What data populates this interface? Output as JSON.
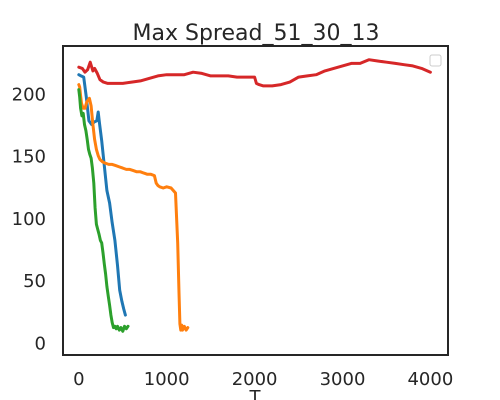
{
  "chart_data": {
    "type": "line",
    "title": "Max Spread_51_30_13",
    "xlabel": "T",
    "ylabel": "",
    "xlim": [
      -180,
      4200
    ],
    "ylim": [
      -10,
      238
    ],
    "xticks": [
      0,
      1000,
      2000,
      3000,
      4000
    ],
    "yticks": [
      0,
      50,
      100,
      150,
      200
    ],
    "grid": false,
    "legend": {
      "placement": "top-right",
      "entries": []
    },
    "series": [
      {
        "color": "#1f77b4",
        "x": [
          0,
          25,
          55,
          85,
          115,
          145,
          175,
          205,
          220,
          235,
          260,
          290,
          320,
          350,
          380,
          410,
          440,
          465,
          490,
          510,
          530
        ],
        "y": [
          215,
          214,
          213,
          197,
          178,
          175,
          177,
          178,
          185,
          176,
          162,
          142,
          122,
          112,
          96,
          82,
          62,
          42,
          33,
          27,
          22
        ]
      },
      {
        "color": "#ff7f0e",
        "x": [
          0,
          10,
          20,
          30,
          50,
          70,
          90,
          120,
          140,
          160,
          180,
          200,
          220,
          240,
          270,
          300,
          340,
          380,
          420,
          460,
          500,
          540,
          580,
          620,
          660,
          700,
          740,
          780,
          820,
          860,
          880,
          900,
          920,
          960,
          1000,
          1050,
          1100,
          1125,
          1140,
          1150,
          1160,
          1170,
          1180,
          1200,
          1220,
          1240
        ],
        "y": [
          207,
          205,
          198,
          192,
          188,
          188,
          193,
          196,
          190,
          175,
          163,
          155,
          150,
          147,
          145,
          144,
          143,
          143,
          142,
          141,
          140,
          139,
          139,
          138,
          137,
          137,
          136,
          135,
          135,
          134,
          128,
          126,
          125,
          124,
          125,
          124,
          120,
          80,
          40,
          15,
          10,
          14,
          10,
          13,
          10,
          12
        ]
      },
      {
        "color": "#2ca02c",
        "x": [
          0,
          10,
          20,
          35,
          50,
          65,
          80,
          95,
          110,
          125,
          140,
          155,
          170,
          185,
          200,
          215,
          230,
          245,
          260,
          275,
          290,
          305,
          320,
          335,
          350,
          365,
          380,
          395,
          410,
          425,
          440,
          460,
          480,
          500,
          520,
          540,
          560
        ],
        "y": [
          203,
          197,
          188,
          182,
          184,
          175,
          170,
          163,
          155,
          151,
          148,
          140,
          128,
          108,
          95,
          91,
          87,
          82,
          80,
          72,
          63,
          55,
          45,
          37,
          30,
          22,
          16,
          12,
          13,
          11,
          13,
          10,
          12,
          9,
          13,
          11,
          13
        ]
      },
      {
        "color": "#d62728",
        "x": [
          0,
          40,
          70,
          100,
          130,
          160,
          180,
          210,
          240,
          280,
          330,
          400,
          500,
          600,
          700,
          800,
          900,
          1000,
          1100,
          1200,
          1300,
          1400,
          1500,
          1600,
          1700,
          1800,
          1900,
          2000,
          2020,
          2050,
          2100,
          2200,
          2300,
          2400,
          2500,
          2600,
          2700,
          2800,
          2900,
          3000,
          3100,
          3200,
          3300,
          3400,
          3500,
          3600,
          3700,
          3800,
          3900,
          4000
        ],
        "y": [
          221,
          220,
          217,
          219,
          225,
          218,
          220,
          216,
          211,
          209,
          208,
          208,
          208,
          209,
          210,
          212,
          214,
          215,
          215,
          215,
          217,
          216,
          214,
          214,
          214,
          213,
          213,
          213,
          208,
          207,
          206,
          206,
          207,
          209,
          213,
          214,
          215,
          218,
          220,
          222,
          224,
          224,
          227,
          226,
          225,
          224,
          223,
          222,
          220,
          217
        ]
      }
    ]
  }
}
